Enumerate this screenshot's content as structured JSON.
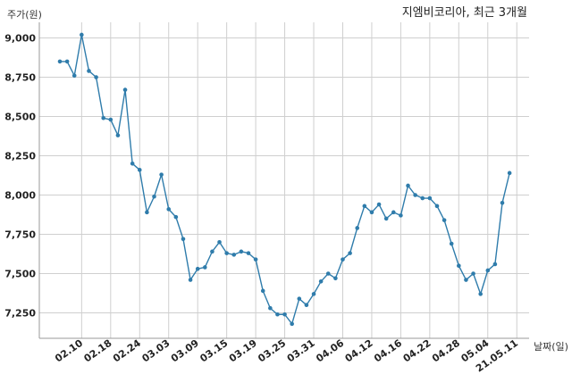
{
  "chart_data": {
    "type": "line",
    "title": "지엠비코리아, 최근 3개월",
    "ylabel": "주가(원)",
    "xlabel": "날짜(일)",
    "grid": true,
    "ylim": [
      7100,
      9100
    ],
    "yticks": [
      7250,
      7500,
      7750,
      8000,
      8250,
      8500,
      8750,
      9000
    ],
    "ytick_labels": [
      "7,250",
      "7,500",
      "7,750",
      "8,000",
      "8,250",
      "8,500",
      "8,750",
      "9,000"
    ],
    "xtick_labels": [
      "02.10",
      "02.18",
      "02.24",
      "03.03",
      "03.09",
      "03.15",
      "03.19",
      "03.25",
      "03.31",
      "04.06",
      "04.12",
      "04.16",
      "04.22",
      "04.28",
      "05.04",
      "21.05.11"
    ],
    "xtick_indices": [
      3,
      7,
      11,
      15,
      19,
      23,
      27,
      31,
      35,
      39,
      43,
      47,
      51,
      55,
      59,
      63
    ],
    "line_color": "#2f7cab",
    "series": [
      {
        "values": [
          8850,
          8850,
          8760,
          9020,
          8790,
          8750,
          8490,
          8480,
          8380,
          8670,
          8200,
          8160,
          7890,
          7990,
          8130,
          7910,
          7860,
          7720,
          7460,
          7530,
          7540,
          7640,
          7700,
          7630,
          7620,
          7640,
          7630,
          7590,
          7390,
          7280,
          7240,
          7240,
          7180,
          7340,
          7300,
          7370,
          7450,
          7500,
          7470,
          7590,
          7630,
          7790,
          7930,
          7890,
          7940,
          7850,
          7890,
          7870,
          8060,
          8000,
          7980,
          7980,
          7930,
          7840,
          7690,
          7550,
          7460,
          7500,
          7370,
          7520,
          7560,
          7950,
          8140
        ]
      }
    ]
  }
}
